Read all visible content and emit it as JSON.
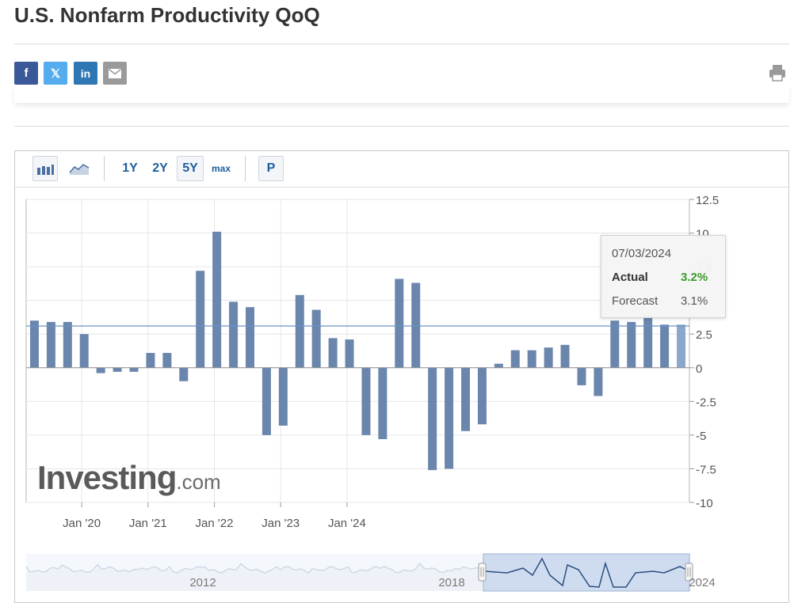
{
  "page": {
    "title": "U.S. Nonfarm Productivity QoQ"
  },
  "share": {
    "facebook_icon": "facebook-icon",
    "facebook_label": "f",
    "twitter_icon": "x-twitter-icon",
    "twitter_label": "𝕏",
    "linkedin_icon": "linkedin-icon",
    "linkedin_label": "in",
    "email_icon": "mail-icon",
    "print_icon": "printer-icon"
  },
  "toolbar": {
    "bar_chart_icon": "bar-chart-icon",
    "line_chart_icon": "line-chart-icon",
    "range_1y": "1Y",
    "range_2y": "2Y",
    "range_5y": "5Y",
    "range_max": "max",
    "selected_range": "5Y",
    "p_button": "P"
  },
  "tooltip": {
    "date": "07/03/2024",
    "actual_label": "Actual",
    "actual_value": "3.2%",
    "forecast_label": "Forecast",
    "forecast_value": "3.1%"
  },
  "watermark": {
    "brand": "Investing",
    "suffix": ".com"
  },
  "navigator": {
    "labels": [
      "2012",
      "2018",
      "2024"
    ]
  },
  "colors": {
    "bar": "#6a86ad",
    "bar_highlight": "#8ba7cb",
    "actual_value": "#3a9b2a",
    "accent": "#1f5e9d",
    "forecast_line": "#6a93c4"
  },
  "chart_data": {
    "type": "bar",
    "series": [
      {
        "values": [
          3.5,
          3.4,
          3.4,
          2.5,
          -0.4,
          -0.3,
          -0.3,
          1.1,
          1.1,
          -1.0,
          7.2,
          10.1,
          4.9,
          4.5,
          -5.0,
          -4.3,
          5.4,
          4.3,
          2.2,
          2.1,
          -5.0,
          -5.3,
          6.6,
          6.3,
          -7.6,
          -7.5,
          -4.7,
          -4.2,
          0.3,
          1.3,
          1.3,
          1.5,
          1.7,
          -1.3,
          -2.1,
          3.5,
          3.4,
          3.9,
          3.2,
          3.2
        ]
      }
    ],
    "y_ticks": [
      "12.5",
      "10",
      "7.5",
      "5",
      "2.5",
      "0",
      "-2.5",
      "-5",
      "-7.5",
      "-10"
    ],
    "x_ticks": [
      "Jan '20",
      "Jan '21",
      "Jan '22",
      "Jan '23",
      "Jan '24"
    ],
    "ylim": [
      -10,
      12.5
    ],
    "forecast": 3.1,
    "grid": true
  }
}
